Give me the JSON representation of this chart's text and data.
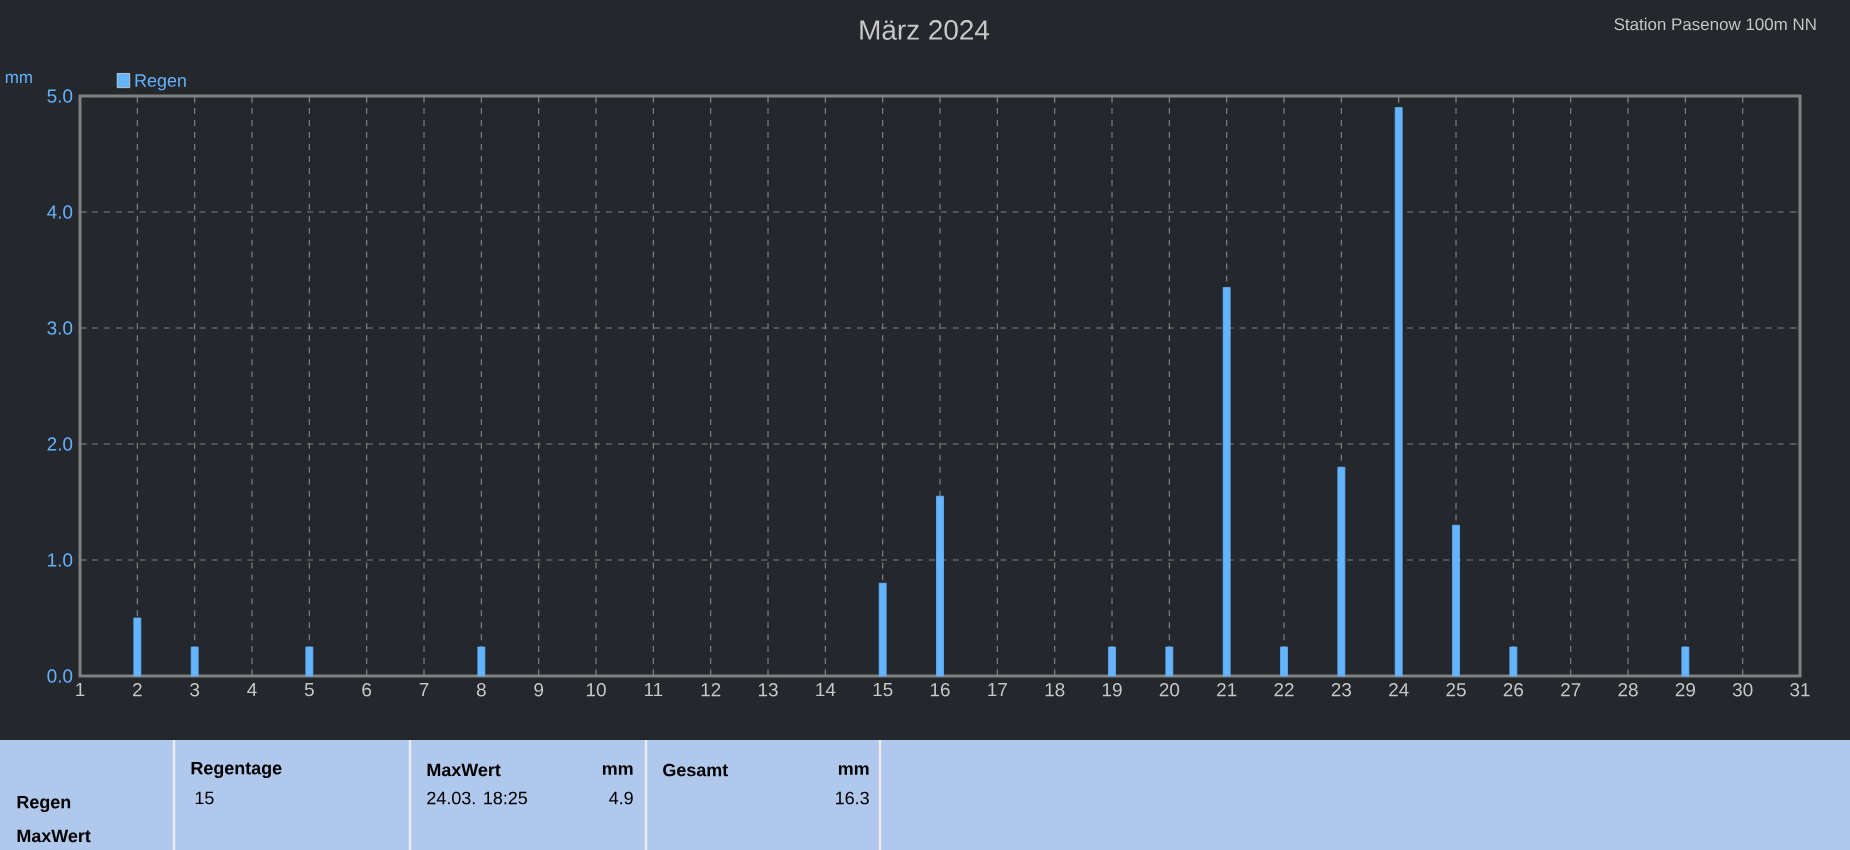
{
  "chart_data": {
    "type": "bar",
    "title": "März 2024",
    "subtitle": "Station Pasenow 100m NN",
    "ylabel": "mm",
    "x": [
      2,
      3,
      5,
      8,
      15,
      16,
      19,
      20,
      21,
      22,
      23,
      24,
      25,
      26,
      29
    ],
    "series": [
      {
        "name": "Regen",
        "color": "#64b4ff",
        "values": [
          0.5,
          0.25,
          0.25,
          0.25,
          0.8,
          1.55,
          0.25,
          0.25,
          3.35,
          0.25,
          1.8,
          4.9,
          1.3,
          0.25,
          0.25
        ]
      }
    ],
    "xlim": [
      1,
      31
    ],
    "xticks": [
      1,
      2,
      3,
      4,
      5,
      6,
      7,
      8,
      9,
      10,
      11,
      12,
      13,
      14,
      15,
      16,
      17,
      18,
      19,
      20,
      21,
      22,
      23,
      24,
      25,
      26,
      27,
      28,
      29,
      30,
      31
    ],
    "ylim": [
      0,
      5
    ],
    "yticks": [
      {
        "value": 0,
        "label": "0.0"
      },
      {
        "value": 1,
        "label": "1.0"
      },
      {
        "value": 2,
        "label": "2.0"
      },
      {
        "value": 3,
        "label": "3.0"
      },
      {
        "value": 4,
        "label": "4.0"
      },
      {
        "value": 5,
        "label": "5.0"
      }
    ],
    "grid": true,
    "legend": "top left",
    "annotations": [
      "Regen",
      "MaxWert",
      "Regentage",
      "15",
      "MaxWert",
      "mm",
      "24.03.  18:25",
      "4.9",
      "Gesamt",
      "mm",
      "16.3"
    ]
  }
}
